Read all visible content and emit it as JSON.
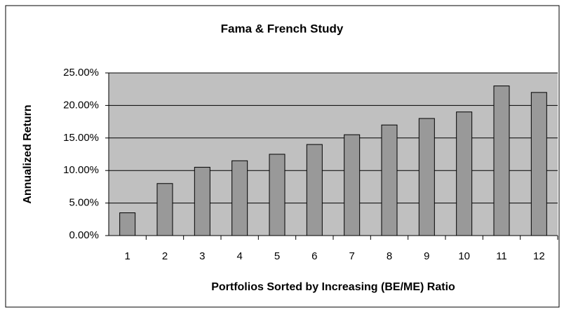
{
  "chart_data": {
    "type": "bar",
    "title": "Fama & French Study",
    "x_label": "Portfolios Sorted by Increasing (BE/ME) Ratio",
    "y_label": "Annualized Return",
    "categories": [
      "1",
      "2",
      "3",
      "4",
      "5",
      "6",
      "7",
      "8",
      "9",
      "10",
      "11",
      "12"
    ],
    "values": [
      3.5,
      8,
      10.5,
      11.5,
      12.5,
      14,
      15.5,
      17,
      18,
      19,
      23,
      22
    ],
    "color": "#999999",
    "ylim": [
      0,
      25
    ],
    "yticks": [
      {
        "value": 0,
        "label": "0.00%"
      },
      {
        "value": 5,
        "label": "5.00%"
      },
      {
        "value": 10,
        "label": "10.00%"
      },
      {
        "value": 15,
        "label": "15.00%"
      },
      {
        "value": 20,
        "label": "20.00%"
      },
      {
        "value": 25,
        "label": "25.00%"
      }
    ],
    "grid": true
  }
}
